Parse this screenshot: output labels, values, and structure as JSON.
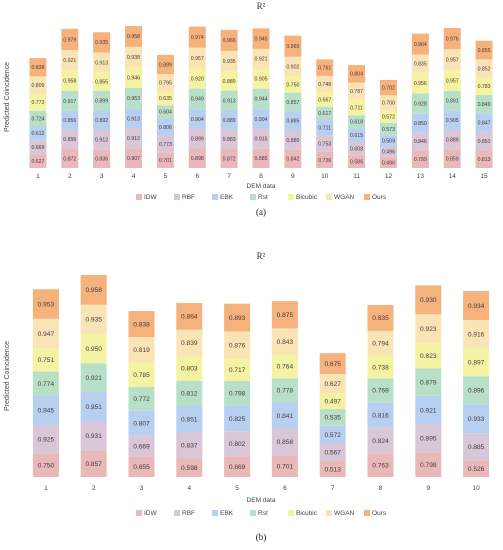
{
  "panels": [
    {
      "label": "(a)",
      "label_text": "a"
    },
    {
      "label": "(b)",
      "label_text": "b"
    }
  ],
  "colors": {
    "IDW": "#e9b8b8",
    "RBF": "#d9c6d6",
    "EBK": "#b7cff0",
    "Rst": "#b8e0c8",
    "Bicubic": "#f4f2a3",
    "WGAN": "#f9e4b6",
    "Ours": "#f6b27c"
  },
  "chart_data": [
    {
      "type": "bar",
      "stacked": true,
      "title": "R²",
      "xlabel": "DEM data",
      "ylabel": "Predicted Coincidence",
      "categories": [
        "1",
        "2",
        "3",
        "4",
        "5",
        "6",
        "7",
        "8",
        "9",
        "10",
        "11",
        "12",
        "13",
        "14",
        "15"
      ],
      "legend": "bottom",
      "series": [
        {
          "name": "IDW",
          "values": [
            0.627,
            0.872,
            0.836,
            0.907,
            0.701,
            0.898,
            0.872,
            0.885,
            0.842,
            0.736,
            0.586,
            0.496,
            0.799,
            0.859,
            0.813
          ]
        },
        {
          "name": "RBF",
          "values": [
            0.669,
            0.895,
            0.912,
            0.912,
            0.773,
            0.899,
            0.883,
            0.915,
            0.88,
            0.753,
            0.608,
            0.496,
            0.846,
            0.889,
            0.851
          ]
        },
        {
          "name": "EBK",
          "values": [
            0.612,
            0.856,
            0.892,
            0.913,
            0.806,
            0.904,
            0.889,
            0.904,
            0.885,
            0.711,
            0.615,
            0.509,
            0.85,
            0.905,
            0.847
          ]
        },
        {
          "name": "Rst",
          "values": [
            0.724,
            0.917,
            0.899,
            0.953,
            0.604,
            0.949,
            0.913,
            0.944,
            0.857,
            0.617,
            0.618,
            0.573,
            0.928,
            0.891,
            0.849
          ]
        },
        {
          "name": "Bicubic",
          "values": [
            0.773,
            0.958,
            0.855,
            0.946,
            0.635,
            0.92,
            0.889,
            0.905,
            0.75,
            0.667,
            0.711,
            0.572,
            0.956,
            0.957,
            0.783
          ]
        },
        {
          "name": "WGAN",
          "values": [
            0.809,
            0.921,
            0.913,
            0.938,
            0.795,
            0.957,
            0.935,
            0.921,
            0.902,
            0.748,
            0.787,
            0.7,
            0.835,
            0.957,
            0.852
          ]
        },
        {
          "name": "Ours",
          "values": [
            0.838,
            0.979,
            0.935,
            0.958,
            0.889,
            0.974,
            0.966,
            0.945,
            0.969,
            0.761,
            0.804,
            0.702,
            0.964,
            0.976,
            0.855
          ]
        }
      ]
    },
    {
      "type": "bar",
      "stacked": true,
      "title": "R²",
      "xlabel": "DEM data",
      "ylabel": "Predicted Coincidence",
      "categories": [
        "1",
        "2",
        "3",
        "4",
        "5",
        "6",
        "7",
        "8",
        "9",
        "10"
      ],
      "legend": "bottom",
      "series": [
        {
          "name": "IDW",
          "values": [
            0.75,
            0.857,
            0.655,
            0.598,
            0.669,
            0.701,
            0.513,
            0.763,
            0.798,
            0.526
          ]
        },
        {
          "name": "RBF",
          "values": [
            0.925,
            0.931,
            0.669,
            0.837,
            0.802,
            0.858,
            0.567,
            0.824,
            0.895,
            0.885
          ]
        },
        {
          "name": "EBK",
          "values": [
            0.945,
            0.951,
            0.807,
            0.851,
            0.825,
            0.841,
            0.572,
            0.816,
            0.921,
            0.933
          ]
        },
        {
          "name": "Rst",
          "values": [
            0.774,
            0.921,
            0.772,
            0.812,
            0.798,
            0.778,
            0.535,
            0.769,
            0.879,
            0.896
          ]
        },
        {
          "name": "Bicubic",
          "values": [
            0.751,
            0.95,
            0.785,
            0.803,
            0.717,
            0.764,
            0.497,
            0.738,
            0.823,
            0.897
          ]
        },
        {
          "name": "WGAN",
          "values": [
            0.947,
            0.935,
            0.819,
            0.839,
            0.876,
            0.843,
            0.627,
            0.794,
            0.923,
            0.916
          ]
        },
        {
          "name": "Ours",
          "values": [
            0.953,
            0.958,
            0.838,
            0.864,
            0.893,
            0.875,
            0.675,
            0.835,
            0.93,
            0.934
          ]
        }
      ]
    }
  ]
}
